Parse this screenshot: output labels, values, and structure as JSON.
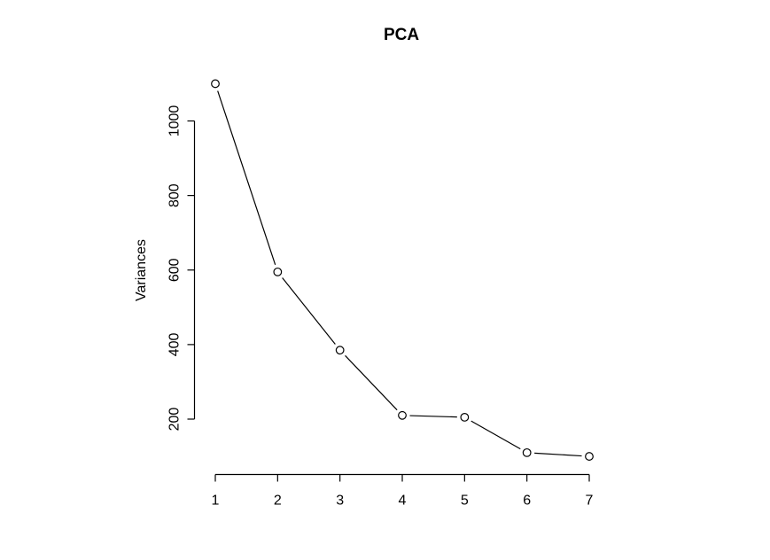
{
  "chart_data": {
    "type": "line",
    "title": "PCA",
    "xlabel": "",
    "ylabel": "Variances",
    "series_name": "Variances",
    "x": [
      1,
      2,
      3,
      4,
      5,
      6,
      7
    ],
    "values": [
      1100,
      595,
      385,
      210,
      205,
      110,
      100
    ],
    "x_tick_labels": [
      "1",
      "2",
      "3",
      "4",
      "5",
      "6",
      "7"
    ],
    "y_ticks": [
      200,
      400,
      600,
      800,
      1000
    ],
    "y_tick_labels": [
      "200",
      "400",
      "600",
      "800",
      "1000"
    ],
    "x_axis_range": [
      1,
      7
    ],
    "y_tick_range": [
      200,
      1000
    ],
    "grid": false,
    "legend": null,
    "marker": "open-circle",
    "marker_fill": "#ffffff",
    "line_color": "#000000",
    "axis_color": "#000000",
    "text_color": "#000000",
    "background": "#ffffff"
  }
}
